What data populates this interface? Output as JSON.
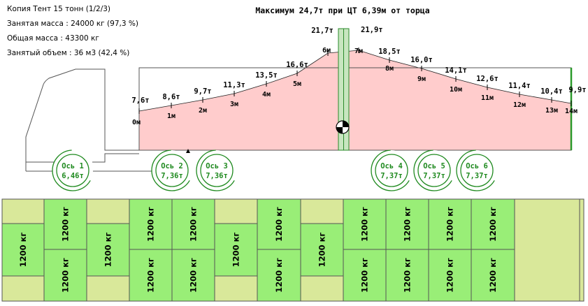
{
  "info": {
    "title": "Копия Тент 15 тонн (1/2/3)",
    "occupied_mass": "Занятая масса : 24000 кг (97,3 %)",
    "total_mass": "Общая масса : 43300 кг",
    "occupied_volume": "Занятый объем : 36 м3 (42,4 %)"
  },
  "header": "Максимум 24,7т при ЦТ 6,39м от торца",
  "load_curve": [
    {
      "m": "0м",
      "t": "7,6т"
    },
    {
      "m": "1м",
      "t": "8,6т"
    },
    {
      "m": "2м",
      "t": "9,7т"
    },
    {
      "m": "3м",
      "t": "11,3т"
    },
    {
      "m": "4м",
      "t": "13,5т"
    },
    {
      "m": "5м",
      "t": "16,6т"
    },
    {
      "m": "6м",
      "t": "21,7т"
    },
    {
      "m": "7м",
      "t": "21,9т"
    },
    {
      "m": "8м",
      "t": "18,5т"
    },
    {
      "m": "9м",
      "t": "16,0т"
    },
    {
      "m": "10м",
      "t": "14,1т"
    },
    {
      "m": "11м",
      "t": "12,6т"
    },
    {
      "m": "12м",
      "t": "11,4т"
    },
    {
      "m": "13м",
      "t": "10,4т"
    },
    {
      "m": "14м",
      "t": "9,9т"
    }
  ],
  "axles": [
    {
      "name": "Ось 1",
      "load": "6,46т"
    },
    {
      "name": "Ось 2",
      "load": "7,36т"
    },
    {
      "name": "Ось 3",
      "load": "7,36т"
    },
    {
      "name": "Ось 4",
      "load": "7,37т"
    },
    {
      "name": "Ось 5",
      "load": "7,37т"
    },
    {
      "name": "Ось 6",
      "load": "7,37т"
    }
  ],
  "pallet_label": "1200 кг",
  "colors": {
    "curve_fill": "#ffcccc",
    "axle": "#1f8a1f",
    "pallet": "#99ee77",
    "deck_bg": "#d9e89a",
    "cg_band": "#c8e6c0"
  }
}
